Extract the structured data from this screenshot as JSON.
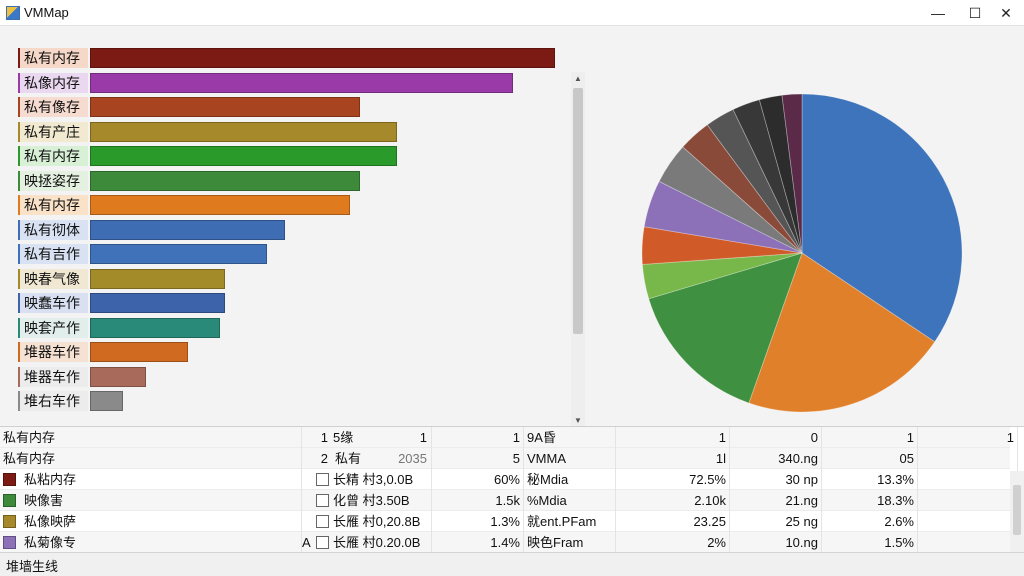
{
  "window": {
    "title": "VMMap",
    "minimize_glyph": "—",
    "maximize_glyph": "☐",
    "close_glyph": "✕"
  },
  "chart_data": [
    {
      "type": "bar",
      "orientation": "horizontal",
      "title": "",
      "xlabel": "",
      "ylabel": "",
      "xlim": [
        0,
        100
      ],
      "categories": [
        "私有内存",
        "私像内存",
        "私有像存",
        "私有产庄",
        "私有内存",
        "映拯姿存",
        "私有内存",
        "私有彻体",
        "私有吉作",
        "映春气像",
        "映蠢车作",
        "映套产作",
        "堆器车作",
        "堆器车作",
        "堆右车作"
      ],
      "values": [
        100,
        91,
        58,
        66,
        66,
        58,
        56,
        42,
        38,
        29,
        29,
        28,
        21,
        12,
        7
      ],
      "colors": [
        "#7b1b14",
        "#9a3aa8",
        "#a8441f",
        "#a6892a",
        "#2a9a2a",
        "#3c8a3a",
        "#e07a1e",
        "#3f6db4",
        "#3f72b8",
        "#a48b29",
        "#3d63aa",
        "#2a8a7a",
        "#cf6a20",
        "#a86a5a",
        "#8a8a8a"
      ],
      "label_colors": [
        "#f6d8c8",
        "#ead8f0",
        "#f6dcd0",
        "#f2ead0",
        "#d8f0d6",
        "#e4f0e0",
        "#fae2c8",
        "#d8e2f2",
        "#d8e2f2",
        "#f0e8d2",
        "#d8e0f2",
        "#e2eeec",
        "#f6e2d2",
        "#ececec",
        "#ececec"
      ]
    },
    {
      "type": "pie",
      "title": "",
      "values": [
        34.5,
        21.0,
        15.0,
        3.5,
        3.8,
        4.8,
        4.2,
        3.3,
        3.0,
        2.8,
        2.3,
        2.0
      ],
      "colors": [
        "#3e74bb",
        "#e0802a",
        "#3f9040",
        "#78b84a",
        "#d05a28",
        "#8c70b8",
        "#7a7a7a",
        "#8a4a3a",
        "#555555",
        "#383838",
        "#2c2c2c",
        "#5a2a48"
      ],
      "start_angle_deg": 0,
      "direction": "clockwise"
    }
  ],
  "scrollbars": {
    "up": "▲",
    "down": "▼",
    "left": "◀",
    "right": "▶"
  },
  "table": {
    "header_rows": [
      {
        "c0": "私有内存",
        "c1": "1",
        "c2": "5缘",
        "c2b": "1",
        "c3": "1",
        "c4": "9A昏",
        "c5": "1",
        "c6": "0",
        "c7": "1",
        "c8": "1"
      },
      {
        "c0": "私有内存",
        "c1": "2",
        "c2": "私有",
        "c2b": "2035",
        "c3": "5",
        "c4": "VMMA",
        "c5": "1l",
        "c6": "340.ng",
        "c7": "05",
        "c8": ""
      }
    ],
    "rows": [
      {
        "swatch": "#7b1b14",
        "name": "私粘内存",
        "c1": "",
        "checked": false,
        "c2": "长精 村3,0.0B",
        "c3": "60%",
        "c4": "秘Mdia",
        "c5": "72.5%",
        "c6": "30 np",
        "c7": "13.3%",
        "c8": ""
      },
      {
        "swatch": "#3c8a3a",
        "name": "映像害",
        "c1": "",
        "checked": false,
        "c2": "化曾 村3.50B",
        "c3": "1.5k",
        "c4": "%Mdia",
        "c5": "2.10k",
        "c6": "21.ng",
        "c7": "18.3%",
        "c8": ""
      },
      {
        "swatch": "#a6892a",
        "name": "私像映萨",
        "c1": "",
        "checked": false,
        "c2": "长雁 村0,20.8B",
        "c3": "1.3%",
        "c4": "就ent.PFam",
        "c5": "23.25",
        "c6": "25 ng",
        "c7": "2.6%",
        "c8": ""
      },
      {
        "swatch": "#8c70b8",
        "name": "私菊像专",
        "c1": "A",
        "checked": false,
        "c2": "长雁 村0.20.0B",
        "c3": "1.4%",
        "c4": "映色Fram",
        "c5": "2%",
        "c6": "10.ng",
        "c7": "1.5%",
        "c8": ""
      }
    ]
  },
  "status": {
    "text": "堆墙生线"
  }
}
